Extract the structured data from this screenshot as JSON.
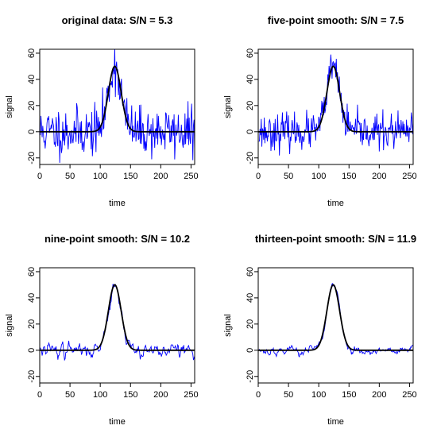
{
  "chart_data": [
    {
      "type": "line",
      "title": "original data: S/N =  5.3",
      "xlabel": "time",
      "ylabel": "signal",
      "xlim": [
        0,
        256
      ],
      "ylim": [
        -25,
        63
      ],
      "xticks": [
        "0",
        "50",
        "100",
        "150",
        "200",
        "250"
      ],
      "yticks": [
        "-20",
        "0",
        "20",
        "40",
        "60"
      ],
      "grid": false,
      "legend": "none",
      "colors": {
        "noisy": "#0000ff",
        "model": "#000000"
      },
      "model": {
        "amplitude": 50,
        "center": 124,
        "sigma": 10.5,
        "x_end": 256
      },
      "series": [
        {
          "role": "noisy",
          "noise_amp": 9.4,
          "smooth_window": 1,
          "seed": 11
        }
      ]
    },
    {
      "type": "line",
      "title": "five-point smooth: S/N =  7.5",
      "xlabel": "time",
      "ylabel": "signal",
      "xlim": [
        0,
        256
      ],
      "ylim": [
        -25,
        63
      ],
      "xticks": [
        "0",
        "50",
        "100",
        "150",
        "200",
        "250"
      ],
      "yticks": [
        "-20",
        "0",
        "20",
        "40",
        "60"
      ],
      "grid": false,
      "legend": "none",
      "colors": {
        "noisy": "#0000ff",
        "model": "#000000"
      },
      "model": {
        "amplitude": 50,
        "center": 124,
        "sigma": 10.5,
        "x_end": 256
      },
      "series": [
        {
          "role": "noisy",
          "noise_amp": 6.7,
          "smooth_window": 1,
          "seed": 23
        }
      ]
    },
    {
      "type": "line",
      "title": "nine-point smooth: S/N =  10.2",
      "xlabel": "time",
      "ylabel": "signal",
      "xlim": [
        0,
        256
      ],
      "ylim": [
        -25,
        63
      ],
      "xticks": [
        "0",
        "50",
        "100",
        "150",
        "200",
        "250"
      ],
      "yticks": [
        "-20",
        "0",
        "20",
        "40",
        "60"
      ],
      "grid": false,
      "legend": "none",
      "colors": {
        "noisy": "#0000ff",
        "model": "#000000"
      },
      "model": {
        "amplitude": 50,
        "center": 124,
        "sigma": 10.5,
        "x_end": 256
      },
      "series": [
        {
          "role": "noisy",
          "noise_amp": 4.9,
          "smooth_window": 3,
          "seed": 37
        }
      ]
    },
    {
      "type": "line",
      "title": "thirteen-point smooth: S/N =  11.9",
      "xlabel": "time",
      "ylabel": "signal",
      "xlim": [
        0,
        256
      ],
      "ylim": [
        -25,
        63
      ],
      "xticks": [
        "0",
        "50",
        "100",
        "150",
        "200",
        "250"
      ],
      "yticks": [
        "-20",
        "0",
        "20",
        "40",
        "60"
      ],
      "grid": false,
      "legend": "none",
      "colors": {
        "noisy": "#0000ff",
        "model": "#000000"
      },
      "model": {
        "amplitude": 50,
        "center": 124,
        "sigma": 10.5,
        "x_end": 256
      },
      "series": [
        {
          "role": "noisy",
          "noise_amp": 4.2,
          "smooth_window": 5,
          "seed": 53
        }
      ]
    }
  ]
}
